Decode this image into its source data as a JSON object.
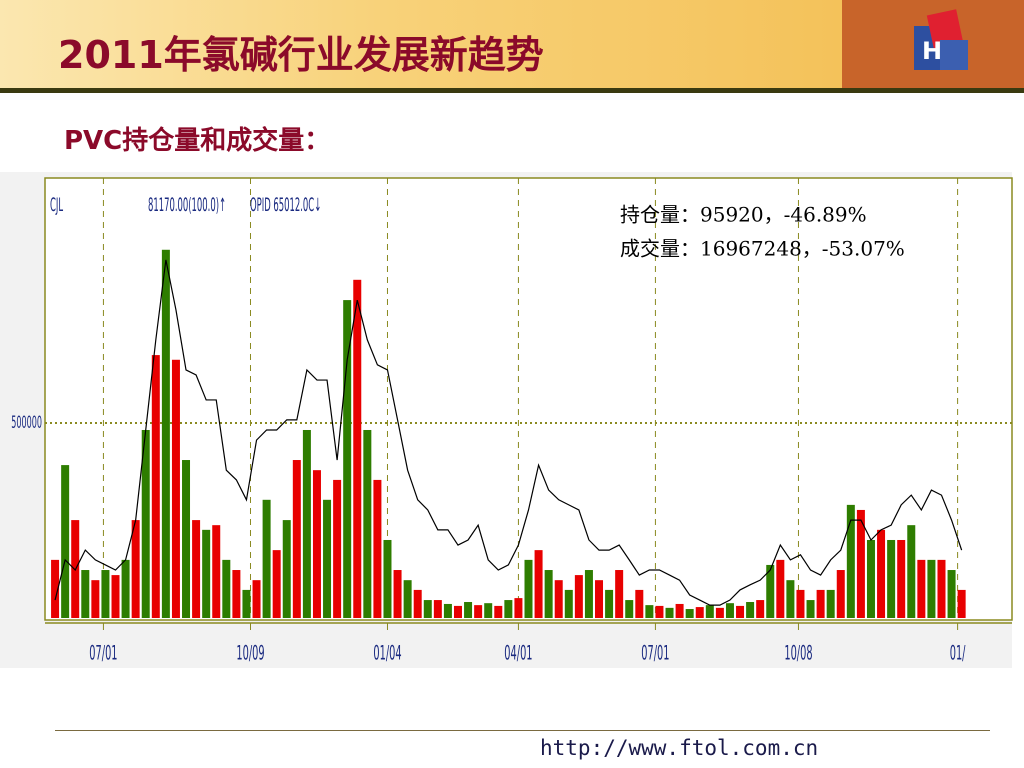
{
  "slide": {
    "title": "2011年氯碱行业发展新趋势",
    "subtitle": "PVC持仓量和成交量：",
    "footer": "http://www.ftol.com.cn"
  },
  "chart_data": {
    "type": "bar-line",
    "labels": [
      "CJL",
      "81170.00(100.0)↑",
      "OPID  65012.0C↓"
    ],
    "annotations": [
      "持仓量：95920，-46.89%",
      "成交量：16967248，-53.07%"
    ],
    "x": [
      1,
      2,
      3,
      4,
      5,
      6,
      7,
      8,
      9,
      10,
      11,
      12,
      13,
      14,
      15,
      16,
      17,
      18,
      19,
      20,
      21,
      22,
      23,
      24,
      25,
      26,
      27,
      28,
      29,
      30,
      31,
      32,
      33,
      34,
      35,
      36,
      37,
      38,
      39,
      40,
      41,
      42,
      43,
      44,
      45,
      46,
      47,
      48,
      49,
      50,
      51,
      52,
      53,
      54,
      55,
      56,
      57,
      58,
      59,
      60,
      61,
      62,
      63,
      64,
      65,
      66,
      67,
      68,
      69,
      70,
      71,
      72,
      73,
      74,
      75,
      76,
      77,
      78,
      79,
      80,
      81,
      82,
      83,
      84,
      85,
      86,
      87,
      88,
      89,
      90,
      91
    ],
    "xlim": [
      0,
      96
    ],
    "xticks": [
      {
        "value": 5.8,
        "label": "07/01"
      },
      {
        "value": 20.4,
        "label": "10/09"
      },
      {
        "value": 34,
        "label": "01/04"
      },
      {
        "value": 47,
        "label": "04/01"
      },
      {
        "value": 60.6,
        "label": "07/01"
      },
      {
        "value": 74.8,
        "label": "10/08"
      },
      {
        "value": 90.6,
        "label": "01/"
      }
    ],
    "ylim": [
      0,
      1128000
    ],
    "yticks": [
      500000
    ],
    "grid": true,
    "series": [
      {
        "name": "成交量",
        "type": "bar",
        "colors": [
          "#e80000",
          "#2e7d00"
        ],
        "values": [
          149000,
          392000,
          251000,
          123000,
          97000,
          123000,
          110000,
          149000,
          251000,
          482000,
          674000,
          944000,
          662000,
          405000,
          251000,
          226000,
          238000,
          149000,
          123000,
          72000,
          97000,
          303000,
          174000,
          251000,
          405000,
          482000,
          379000,
          303000,
          354000,
          815000,
          867000,
          482000,
          354000,
          200000,
          123000,
          97000,
          72000,
          46000,
          46000,
          36000,
          31000,
          41000,
          33000,
          38000,
          31000,
          46000,
          51000,
          149000,
          174000,
          123000,
          97000,
          72000,
          110000,
          123000,
          97000,
          72000,
          123000,
          46000,
          72000,
          33000,
          31000,
          26000,
          36000,
          23000,
          28000,
          33000,
          26000,
          38000,
          31000,
          41000,
          46000,
          136000,
          149000,
          97000,
          72000,
          46000,
          72000,
          72000,
          123000,
          290000,
          277000,
          200000,
          226000,
          200000,
          200000,
          238000,
          149000,
          149000,
          149000,
          123000,
          72000
        ]
      },
      {
        "name": "持仓量",
        "type": "line",
        "color": "#000000",
        "values": [
          46000,
          149000,
          123000,
          174000,
          149000,
          136000,
          123000,
          149000,
          251000,
          482000,
          713000,
          918000,
          790000,
          636000,
          623000,
          559000,
          559000,
          379000,
          354000,
          303000,
          456000,
          482000,
          482000,
          508000,
          508000,
          636000,
          610000,
          610000,
          405000,
          662000,
          815000,
          713000,
          649000,
          636000,
          508000,
          379000,
          303000,
          277000,
          226000,
          226000,
          187000,
          200000,
          238000,
          149000,
          123000,
          136000,
          187000,
          277000,
          392000,
          328000,
          303000,
          290000,
          277000,
          200000,
          174000,
          174000,
          187000,
          149000,
          110000,
          123000,
          123000,
          110000,
          97000,
          59000,
          46000,
          33000,
          33000,
          46000,
          72000,
          85000,
          97000,
          123000,
          187000,
          149000,
          162000,
          123000,
          110000,
          149000,
          174000,
          251000,
          251000,
          200000,
          226000,
          238000,
          290000,
          315000,
          277000,
          328000,
          315000,
          251000,
          174000
        ]
      }
    ]
  }
}
